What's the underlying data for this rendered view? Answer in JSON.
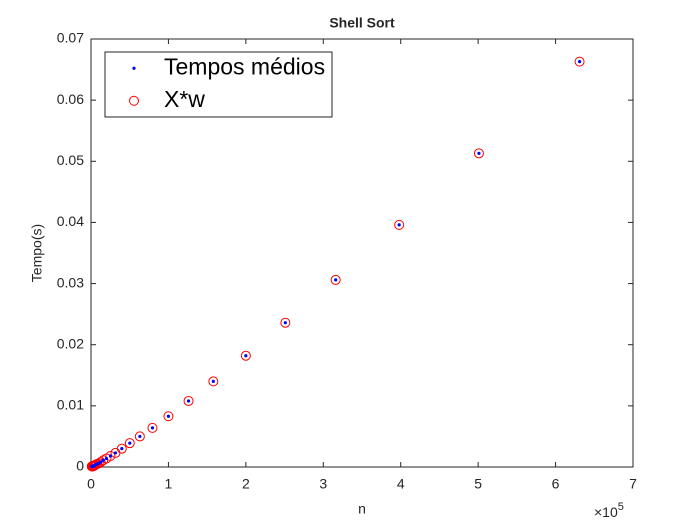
{
  "chart_data": {
    "type": "scatter",
    "title": "Shell Sort",
    "x_label": "n",
    "y_label": "Tempo(s)",
    "x_multiplier": {
      "base": "×10",
      "exponent": "5"
    },
    "x": [
      0.01,
      0.0126,
      0.0158,
      0.02,
      0.0251,
      0.0316,
      0.0398,
      0.0501,
      0.0631,
      0.0794,
      0.1,
      0.126,
      0.158,
      0.2,
      0.251,
      0.316,
      0.398,
      0.501,
      0.631,
      0.794,
      1.0,
      1.26,
      1.58,
      2.0,
      2.51,
      3.16,
      3.98,
      5.01,
      6.31
    ],
    "series": [
      {
        "name": "Tempos médios",
        "color": "#0000ff",
        "marker": "dot",
        "values": [
          0.0001,
          0.0001,
          0.0001,
          0.0001,
          0.0001,
          0.0002,
          0.0002,
          0.0003,
          0.0004,
          0.0005,
          0.0006,
          0.0008,
          0.0011,
          0.0014,
          0.0018,
          0.0023,
          0.003,
          0.0039,
          0.005,
          0.0064,
          0.0083,
          0.0108,
          0.014,
          0.0182,
          0.0236,
          0.0306,
          0.0396,
          0.0513,
          0.0663
        ]
      },
      {
        "name": "X*w",
        "color": "#ff0000",
        "marker": "circle",
        "values": [
          0.0001,
          0.0001,
          0.0001,
          0.0001,
          0.0001,
          0.0002,
          0.0002,
          0.0003,
          0.0004,
          0.0005,
          0.0006,
          0.0008,
          0.0011,
          0.0014,
          0.0018,
          0.0023,
          0.003,
          0.0039,
          0.005,
          0.0064,
          0.0083,
          0.0108,
          0.014,
          0.0182,
          0.0236,
          0.0306,
          0.0396,
          0.0513,
          0.0663
        ]
      }
    ],
    "xlim": [
      0,
      7
    ],
    "xticks": [
      0,
      1,
      2,
      3,
      4,
      5,
      6,
      7
    ],
    "ylim": [
      0,
      0.07
    ],
    "yticks": [
      0,
      0.01,
      0.02,
      0.03,
      0.04,
      0.05,
      0.06,
      0.07
    ],
    "grid": false,
    "legend": "northwest"
  }
}
